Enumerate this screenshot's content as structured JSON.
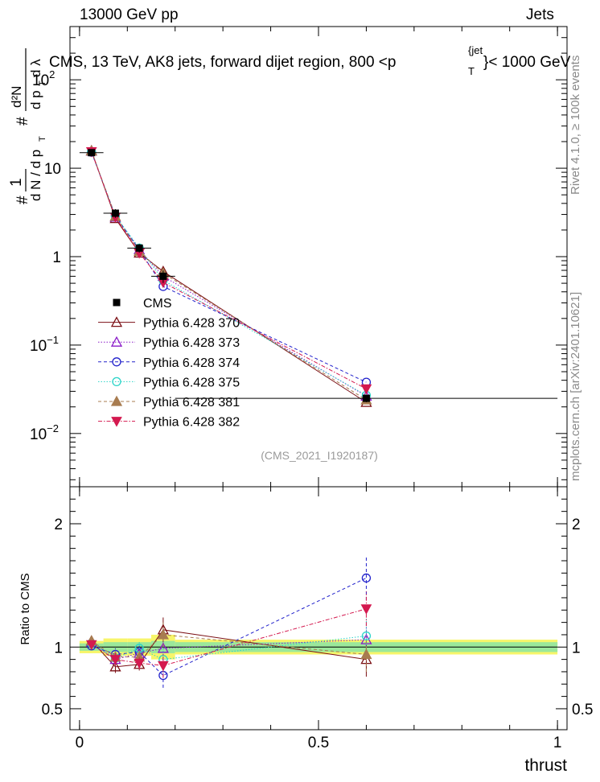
{
  "header": {
    "left": "13000 GeV pp",
    "right": "Jets"
  },
  "side_labels": {
    "rivet": "Rivet 4.1.0, ≥ 100k events",
    "mcplots": "mcplots.cern.ch [arXiv:2401.10621]"
  },
  "chart_data": {
    "type": "scatter",
    "title_prefix": "CMS, 13 TeV, AK8 jets, forward dijet region, 800 <p",
    "title_sup": "{jet",
    "title_sub": "T",
    "title_suffix": "}< 1000 GeV",
    "analysis_id": "(CMS_2021_I1920187)",
    "xlabel": "thrust",
    "ylabel_top": "1/(dN/dp_T) d²N/(dp_T dλ)",
    "ylabel_ratio": "Ratio to CMS",
    "xlim": [
      -0.02,
      1.02
    ],
    "ylim": [
      0.0025,
      400
    ],
    "yscale": "log",
    "ratio_ylim": [
      0.33,
      2.3
    ],
    "x_ticks": [
      {
        "v": 0,
        "label": "0"
      },
      {
        "v": 0.5,
        "label": "0.5"
      },
      {
        "v": 1,
        "label": "1"
      }
    ],
    "y_ticks": [
      {
        "v": 0.01,
        "base": "10",
        "exp": "−2"
      },
      {
        "v": 0.1,
        "base": "10",
        "exp": "−1"
      },
      {
        "v": 1,
        "base": "1",
        "exp": ""
      },
      {
        "v": 10,
        "base": "10",
        "exp": ""
      },
      {
        "v": 100,
        "base": "10",
        "exp": "2"
      }
    ],
    "ratio_ticks": [
      {
        "v": 0.5,
        "label": "0.5"
      },
      {
        "v": 1,
        "label": "1"
      },
      {
        "v": 2,
        "label": "2"
      }
    ],
    "x": [
      0.025,
      0.075,
      0.125,
      0.175,
      0.6
    ],
    "bin_edges": [
      [
        0.0,
        0.05
      ],
      [
        0.05,
        0.1
      ],
      [
        0.1,
        0.15
      ],
      [
        0.15,
        0.2
      ],
      [
        0.2,
        1.0
      ]
    ],
    "data": {
      "name": "CMS",
      "values": [
        15.0,
        3.1,
        1.25,
        0.6,
        0.025
      ],
      "band_inner": [
        0.03,
        0.04,
        0.04,
        0.05,
        0.04
      ],
      "band_outer": [
        0.05,
        0.07,
        0.07,
        0.1,
        0.06
      ]
    },
    "series": [
      {
        "name": "Pythia 6.428 370",
        "color": "#7b0f14",
        "marker": "triangle-up-open",
        "dash": "",
        "values": [
          15.8,
          2.7,
          1.1,
          0.68,
          0.0225
        ],
        "ratio": [
          1.05,
          0.84,
          0.86,
          1.14,
          0.9
        ],
        "ratio_err": [
          0.03,
          0.05,
          0.05,
          0.1,
          0.14
        ]
      },
      {
        "name": "Pythia 6.428 373",
        "color": "#8a1ac8",
        "marker": "triangle-up-open",
        "dash": "1.5,2",
        "values": [
          15.6,
          2.8,
          1.2,
          0.6,
          0.0265
        ],
        "ratio": [
          1.04,
          0.9,
          0.95,
          0.99,
          1.06
        ],
        "ratio_err": [
          0.03,
          0.05,
          0.05,
          0.1,
          0.14
        ]
      },
      {
        "name": "Pythia 6.428 374",
        "color": "#2222cc",
        "marker": "circle-open",
        "dash": "4,3",
        "values": [
          15.2,
          2.9,
          1.2,
          0.46,
          0.038
        ],
        "ratio": [
          1.01,
          0.94,
          0.96,
          0.77,
          1.56
        ],
        "ratio_err": [
          0.03,
          0.05,
          0.05,
          0.1,
          0.18
        ]
      },
      {
        "name": "Pythia 6.428 375",
        "color": "#2ad4c8",
        "marker": "circle-open",
        "dash": "1.5,2",
        "values": [
          15.4,
          2.9,
          1.25,
          0.54,
          0.027
        ],
        "ratio": [
          1.03,
          0.91,
          0.99,
          0.9,
          1.09
        ],
        "ratio_err": [
          0.03,
          0.05,
          0.05,
          0.1,
          0.14
        ]
      },
      {
        "name": "Pythia 6.428 381",
        "color": "#a87c50",
        "marker": "triangle-up-filled",
        "dash": "4,3",
        "values": [
          15.7,
          2.85,
          1.15,
          0.65,
          0.024
        ],
        "ratio": [
          1.05,
          0.92,
          0.92,
          1.1,
          0.94
        ],
        "ratio_err": [
          0.03,
          0.05,
          0.05,
          0.1,
          0.14
        ]
      },
      {
        "name": "Pythia 6.428 382",
        "color": "#d4194f",
        "marker": "triangle-down-filled",
        "dash": "5,2,1.5,2",
        "values": [
          15.4,
          2.8,
          1.1,
          0.51,
          0.032
        ],
        "ratio": [
          1.02,
          0.9,
          0.87,
          0.85,
          1.31
        ],
        "ratio_err": [
          0.03,
          0.05,
          0.05,
          0.1,
          0.14
        ]
      }
    ]
  }
}
